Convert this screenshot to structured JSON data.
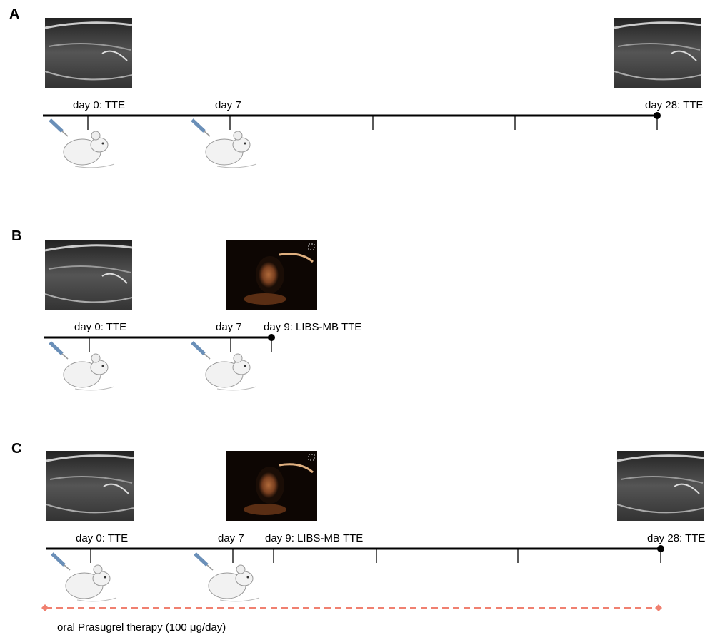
{
  "panels": [
    {
      "label": "A",
      "events": [
        "day 0: TTE",
        "day 7",
        "day 28: TTE"
      ]
    },
    {
      "label": "B",
      "events": [
        "day 0: TTE",
        "day 7",
        "day 9: LIBS-MB TTE"
      ]
    },
    {
      "label": "C",
      "events": [
        "day 0: TTE",
        "day 7",
        "day 9: LIBS-MB TTE",
        "day 28: TTE"
      ],
      "therapy": "oral Prasugrel therapy (100 μg/day)"
    }
  ]
}
